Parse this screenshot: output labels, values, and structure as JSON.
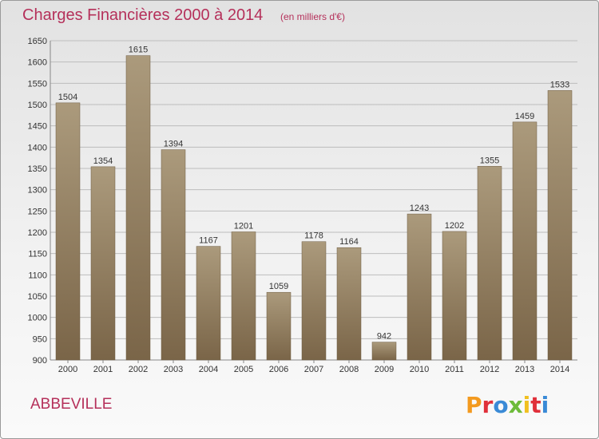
{
  "header": {
    "title": "Charges Financières 2000 à 2014",
    "subtitle": "(en milliers d'€)"
  },
  "footer": {
    "city": "ABBEVILLE",
    "logo_text": "Proxiti",
    "logo_colors": [
      "#f39a1f",
      "#e0303a",
      "#3a8ad6",
      "#6dbb3a",
      "#f0c020",
      "#e0303a",
      "#3a8ad6"
    ]
  },
  "colors": {
    "title": "#b5305a",
    "bar_light": "#ab9a7c",
    "bar_dark": "#7a6548",
    "grid": "#bdbdbd"
  },
  "chart_data": {
    "type": "bar",
    "title": "Charges Financières 2000 à 2014",
    "subtitle": "(en milliers d'€)",
    "categories": [
      "2000",
      "2001",
      "2002",
      "2003",
      "2004",
      "2005",
      "2006",
      "2007",
      "2008",
      "2009",
      "2010",
      "2011",
      "2012",
      "2013",
      "2014"
    ],
    "values": [
      1504,
      1354,
      1615,
      1394,
      1167,
      1201,
      1059,
      1178,
      1164,
      942,
      1243,
      1202,
      1355,
      1459,
      1533
    ],
    "ylim": [
      900,
      1650
    ],
    "yticks": [
      900,
      950,
      1000,
      1050,
      1100,
      1150,
      1200,
      1250,
      1300,
      1350,
      1400,
      1450,
      1500,
      1550,
      1600,
      1650
    ],
    "grid": true,
    "legend": "none"
  }
}
